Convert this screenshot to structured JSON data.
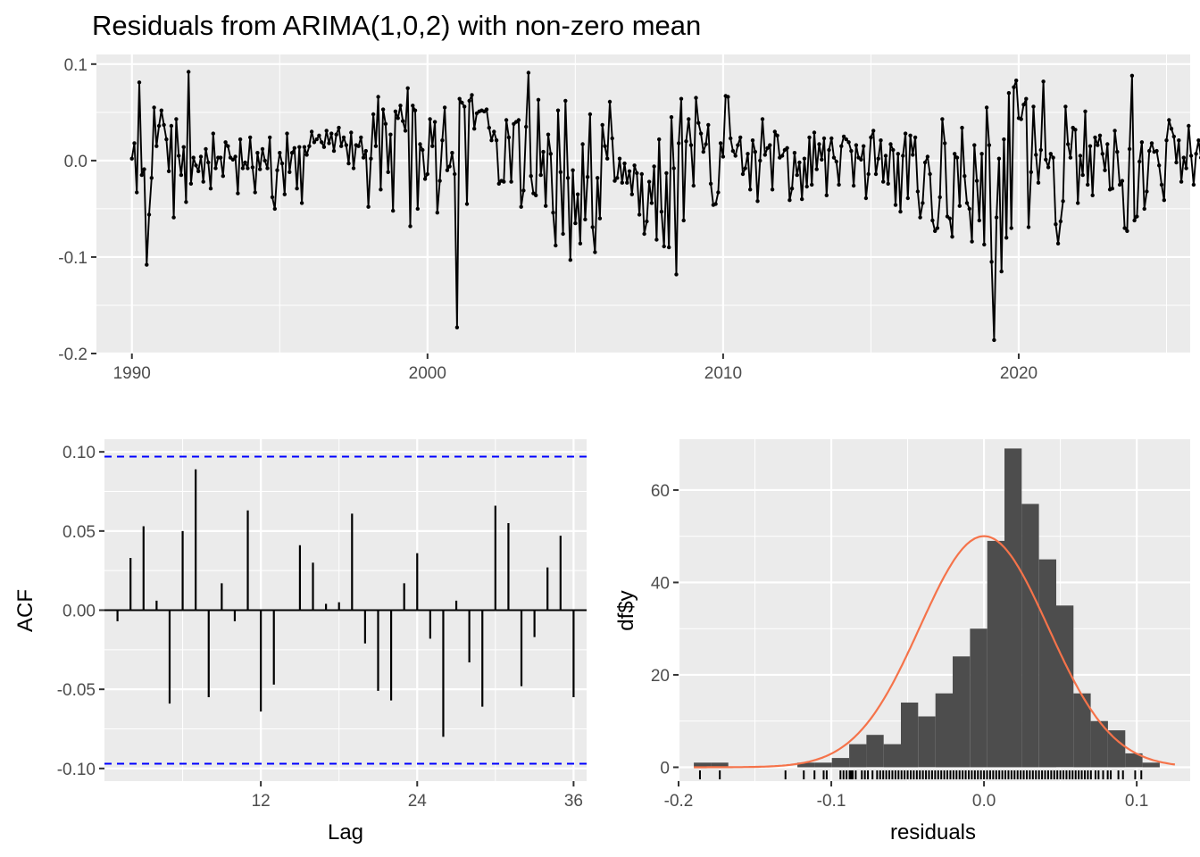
{
  "chart_data": [
    {
      "type": "line",
      "title": "Residuals from ARIMA(1,0,2) with non-zero mean",
      "xlabel": "",
      "ylabel": "",
      "xlim": [
        1988.8,
        2025.8
      ],
      "ylim": [
        -0.2,
        0.11
      ],
      "x_ticks": [
        "1990",
        "2000",
        "2010",
        "2020"
      ],
      "y_ticks": [
        "0.1",
        "0.0",
        "-0.1",
        "-0.2"
      ],
      "start_year": 1990,
      "frequency": 12,
      "values": [
        0.002,
        0.018,
        -0.033,
        0.081,
        -0.015,
        -0.009,
        -0.108,
        -0.056,
        -0.018,
        0.055,
        0.015,
        0.036,
        0.052,
        0.037,
        0.022,
        -0.011,
        0.036,
        -0.059,
        0.043,
        0.005,
        -0.015,
        0.014,
        -0.043,
        0.092,
        -0.024,
        0.003,
        -0.005,
        -0.011,
        0.004,
        -0.022,
        0.012,
        -0.002,
        -0.029,
        0.028,
        -0.008,
        0.003,
        0.003,
        -0.016,
        0.019,
        0.015,
        0.003,
        0.001,
        0.004,
        -0.034,
        0.022,
        -0.008,
        -0.002,
        -0.008,
        0.024,
        -0.007,
        -0.033,
        0.008,
        -0.009,
        0.012,
        0.0,
        -0.008,
        0.024,
        -0.038,
        -0.05,
        -0.01,
        0.008,
        -0.003,
        -0.035,
        0.028,
        -0.012,
        0.008,
        0.013,
        -0.029,
        0.014,
        -0.044,
        0.014,
        0.006,
        0.015,
        0.03,
        0.019,
        0.022,
        0.026,
        0.019,
        0.014,
        0.031,
        0.018,
        0.028,
        0.01,
        0.027,
        0.034,
        0.015,
        0.024,
        0.016,
        -0.003,
        0.029,
        -0.008,
        0.016,
        0.015,
        0.024,
        0.003,
        0.01,
        -0.048,
        0.002,
        0.048,
        0.015,
        0.066,
        -0.03,
        0.053,
        0.038,
        -0.012,
        0.027,
        -0.052,
        0.051,
        0.044,
        0.057,
        0.041,
        0.031,
        0.075,
        -0.068,
        0.057,
        0.052,
        -0.05,
        0.017,
        0.011,
        -0.019,
        -0.014,
        0.043,
        0.015,
        0.04,
        -0.054,
        -0.021,
        0.021,
        0.055,
        -0.01,
        -0.006,
        0.008,
        -0.014,
        -0.173,
        0.064,
        0.06,
        0.056,
        -0.045,
        0.062,
        0.068,
        0.033,
        0.049,
        0.051,
        0.052,
        0.051,
        0.053,
        0.034,
        0.021,
        0.03,
        0.021,
        -0.024,
        -0.021,
        -0.022,
        0.042,
        0.024,
        -0.022,
        0.038,
        0.04,
        0.042,
        -0.048,
        -0.031,
        0.035,
        0.091,
        -0.016,
        -0.034,
        -0.036,
        0.063,
        -0.015,
        0.009,
        -0.047,
        0.027,
        0.007,
        -0.054,
        -0.088,
        0.052,
        -0.012,
        -0.076,
        0.062,
        -0.018,
        -0.103,
        -0.01,
        -0.065,
        -0.035,
        -0.086,
        0.017,
        -0.061,
        -0.017,
        0.048,
        -0.069,
        -0.095,
        -0.018,
        -0.06,
        0.037,
        0.015,
        0.002,
        0.061,
        0.023,
        -0.021,
        -0.018,
        0.002,
        -0.023,
        -0.003,
        -0.023,
        -0.011,
        -0.035,
        -0.005,
        -0.013,
        -0.056,
        -0.014,
        -0.076,
        -0.063,
        -0.022,
        -0.044,
        -0.006,
        -0.082,
        0.022,
        -0.053,
        -0.089,
        -0.013,
        -0.09,
        0.045,
        -0.008,
        -0.118,
        0.018,
        0.064,
        -0.062,
        0.02,
        0.043,
        0.016,
        -0.026,
        0.065,
        0.039,
        0.028,
        0.009,
        0.017,
        0.037,
        -0.024,
        -0.046,
        -0.045,
        -0.033,
        0.018,
        0.004,
        0.067,
        0.066,
        0.023,
        0.01,
        0.005,
        0.016,
        0.024,
        -0.014,
        -0.008,
        0.007,
        -0.03,
        0.021,
        0.009,
        -0.042,
        0.0,
        0.043,
        0.006,
        0.013,
        0.016,
        -0.03,
        0.03,
        0.026,
        0.003,
        0.005,
        0.011,
        0.013,
        -0.041,
        -0.029,
        0.008,
        -0.015,
        -0.002,
        -0.04,
        0.002,
        -0.027,
        0.024,
        -0.025,
        0.029,
        -0.009,
        0.017,
        0.001,
        0.023,
        -0.036,
        0.011,
        0.023,
        0.003,
        -0.001,
        -0.025,
        0.015,
        0.025,
        0.022,
        0.019,
        0.01,
        -0.026,
        0.016,
        0.003,
        0.001,
        0.015,
        -0.039,
        -0.014,
        0.024,
        0.031,
        -0.014,
        0.002,
        0.021,
        -0.022,
        0.005,
        -0.024,
        0.017,
        0.011,
        -0.046,
        0.007,
        -0.053,
        0.005,
        0.028,
        -0.039,
        0.026,
        0.006,
        0.024,
        -0.032,
        -0.059,
        -0.044,
        -0.002,
        0.004,
        -0.014,
        -0.062,
        -0.073,
        -0.07,
        -0.038,
        0.043,
        0.018,
        -0.058,
        -0.06,
        -0.079,
        0.007,
        0.003,
        -0.047,
        0.034,
        -0.016,
        -0.044,
        -0.05,
        -0.084,
        0.016,
        -0.021,
        -0.062,
        0.007,
        -0.087,
        0.055,
        0.016,
        -0.105,
        -0.186,
        -0.059,
        0.002,
        -0.115,
        0.022,
        -0.08,
        0.07,
        -0.07,
        0.076,
        0.083,
        0.044,
        0.043,
        0.058,
        0.064,
        -0.069,
        -0.012,
        0.056,
        0.006,
        -0.023,
        0.011,
        0.082,
        0.001,
        -0.007,
        0.007,
        0.003,
        -0.066,
        -0.086,
        -0.063,
        -0.042,
        0.056,
        0.017,
        0.003,
        0.034,
        0.032,
        -0.044,
        0.005,
        -0.015,
        0.051,
        -0.025,
        0.015,
        -0.036,
        0.024,
        0.016,
        0.026,
        0.007,
        -0.01,
        0.017,
        -0.03,
        -0.029,
        0.031,
        0.009,
        -0.025,
        -0.021,
        -0.07,
        -0.073,
        0.012,
        0.088,
        -0.062,
        -0.058,
        -0.001,
        0.019,
        -0.05,
        -0.032,
        0.01,
        0.018,
        0.009,
        0.01,
        -0.005,
        -0.025,
        -0.041,
        0.021,
        0.042,
        0.033,
        0.025,
        -0.002,
        0.021,
        -0.022,
        0.003,
        -0.008,
        0.036,
        0.005,
        -0.025,
        0.007,
        0.021,
        0.003,
        0.018,
        0.009,
        -0.041,
        0.048,
        0.001,
        -0.009,
        0.03,
        0.023,
        -0.008,
        0.03,
        0.001,
        0.029,
        0.021,
        -0.01,
        0.028,
        -0.006,
        -0.032,
        0.001,
        -0.046,
        -0.038,
        -0.05,
        0.023,
        0.01,
        -0.036,
        -0.003,
        -0.026,
        0.006,
        -0.023,
        0.004,
        0.025,
        0.016,
        -0.01,
        -0.042,
        0.006,
        0.016,
        0.015,
        -0.028,
        -0.015,
        -0.004,
        0.003,
        -0.026,
        0.032,
        0.007,
        -0.033,
        0.004,
        -0.01,
        0.015,
        0.007,
        0.014,
        0.014,
        0.011,
        0.003,
        -0.017,
        0.015,
        -0.043,
        0.01,
        -0.023,
        0.017,
        -0.003,
        -0.034,
        -0.004,
        0.026,
        0.01,
        -0.009,
        0.073,
        -0.056,
        -0.037,
        0.004,
        -0.064,
        0.034,
        0.003,
        -0.009,
        -0.002,
        0.024,
        0.026,
        -0.009,
        0.002,
        0.01,
        0.001,
        -0.01,
        0.012,
        -0.005,
        0.009,
        0.001,
        0.019,
        0.005,
        0.009,
        0.012,
        0.016,
        0.006,
        0.018,
        0.026,
        0.013,
        0.009,
        -0.046,
        0.033,
        -0.028,
        0.005,
        0.029,
        0.014,
        -0.016,
        0.062,
        -0.057,
        -0.025,
        0.035,
        -0.035,
        0.005,
        0.018,
        -0.026,
        0.001,
        -0.041,
        0.006,
        0.03,
        0.019,
        0.023,
        -0.002,
        0.041,
        -0.066,
        0.025,
        0.014,
        0.028,
        -0.014,
        -0.04,
        0.032,
        0.028,
        -0.024,
        0.038,
        -0.043,
        -0.015,
        0.036,
        0.002,
        -0.035,
        -0.047,
        -0.006,
        -0.001,
        0.018,
        0.052,
        -0.056,
        -0.078,
        0.024,
        -0.016,
        -0.111,
        -0.037,
        0.02,
        0.048,
        0.015,
        0.01,
        0.004,
        -0.046,
        0.008,
        0.016,
        -0.043,
        0.022,
        0.018,
        0.035,
        -0.054,
        -0.005,
        0.01,
        0.025,
        0.018,
        0.034,
        0.029,
        0.002,
        0.015,
        -0.103,
        -0.13,
        0.103,
        0.045,
        0.002,
        0.09,
        -0.041,
        0.045,
        0.018,
        0.043,
        0.015,
        0.099,
        -0.026,
        0.035,
        -0.004,
        -0.003,
        -0.024,
        0.082,
        0.028,
        -0.003,
        0.009,
        0.01,
        0.027,
        -0.002,
        0.011,
        -0.018,
        -0.052,
        0.034,
        0.005,
        -0.073,
        0.016,
        0.026,
        -0.001,
        0.038,
        -0.024,
        -0.028,
        -0.058,
        -0.03,
        0.008,
        0.075,
        0.039,
        -0.045,
        -0.06,
        -0.04,
        0.001,
        0.061,
        -0.029,
        0.016,
        0.054,
        -0.037,
        0.014,
        -0.015,
        -0.09,
        0.045,
        -0.025,
        0.01,
        -0.047,
        -0.092,
        0.011,
        -0.004,
        -0.007,
        0.046,
        0.035,
        -0.094,
        -0.032,
        -0.047
      ],
      "color_line": "#000000",
      "panel_bg": "#ebebeb",
      "grid_color": "#ffffff",
      "grid": true
    },
    {
      "type": "bar",
      "title": "",
      "xlabel": "Lag",
      "ylabel": "ACF",
      "xlim": [
        0,
        37
      ],
      "ylim": [
        -0.108,
        0.108
      ],
      "x_ticks": [
        "12",
        "24",
        "36"
      ],
      "y_ticks": [
        "0.10",
        "0.05",
        "0.00",
        "-0.05",
        "-0.10"
      ],
      "categories": [
        1,
        2,
        3,
        4,
        5,
        6,
        7,
        8,
        9,
        10,
        11,
        12,
        13,
        14,
        15,
        16,
        17,
        18,
        19,
        20,
        21,
        22,
        23,
        24,
        25,
        26,
        27,
        28,
        29,
        30,
        31,
        32,
        33,
        34,
        35,
        36
      ],
      "values": [
        -0.007,
        0.033,
        0.053,
        0.006,
        -0.059,
        0.05,
        0.089,
        -0.055,
        0.017,
        -0.007,
        0.063,
        -0.064,
        -0.047,
        0.0,
        0.041,
        0.03,
        0.004,
        0.005,
        0.061,
        -0.021,
        -0.051,
        -0.057,
        0.017,
        0.036,
        -0.018,
        -0.08,
        0.006,
        -0.033,
        -0.061,
        0.066,
        0.055,
        -0.048,
        -0.017,
        0.027,
        0.047,
        -0.055
      ],
      "confidence_limit": 0.097,
      "color_ci": "#0000ff",
      "panel_bg": "#ebebeb",
      "grid_color": "#ffffff",
      "grid": true
    },
    {
      "type": "bar",
      "title": "",
      "xlabel": "residuals",
      "ylabel": "df$y",
      "xlim": [
        -0.2,
        0.135
      ],
      "ylim": [
        -3,
        71
      ],
      "x_ticks": [
        "-0.2",
        "-0.1",
        "0.0",
        "0.1"
      ],
      "y_ticks": [
        "60",
        "40",
        "20",
        "0"
      ],
      "bin_start": -0.19,
      "bin_width": 0.0113,
      "values": [
        1,
        1,
        0,
        0,
        0,
        0,
        1,
        1,
        2,
        5,
        7,
        5,
        14,
        11,
        16,
        24,
        30,
        49,
        69,
        57,
        45,
        35,
        16,
        10,
        8,
        3,
        1
      ],
      "density_curve": {
        "mean": 0.0,
        "sd": 0.042,
        "n": 466
      },
      "rug": [
        -0.186,
        -0.173,
        -0.13,
        -0.118,
        -0.111,
        -0.105,
        -0.103,
        -0.094,
        -0.092,
        -0.09,
        -0.088,
        -0.087,
        -0.086,
        -0.084,
        -0.08,
        -0.078,
        -0.076,
        -0.073,
        -0.07,
        -0.068,
        -0.066,
        -0.064,
        -0.062,
        -0.06,
        -0.058,
        -0.056,
        -0.054,
        -0.052,
        -0.05,
        -0.048,
        -0.046,
        -0.044,
        -0.042,
        -0.04,
        -0.038,
        -0.036,
        -0.034,
        -0.032,
        -0.03,
        -0.028,
        -0.026,
        -0.024,
        -0.022,
        -0.02,
        -0.018,
        -0.016,
        -0.014,
        -0.012,
        -0.01,
        -0.008,
        -0.006,
        -0.004,
        -0.002,
        0.0,
        0.002,
        0.004,
        0.006,
        0.008,
        0.01,
        0.012,
        0.014,
        0.016,
        0.018,
        0.02,
        0.022,
        0.024,
        0.026,
        0.028,
        0.03,
        0.032,
        0.034,
        0.036,
        0.038,
        0.04,
        0.042,
        0.044,
        0.046,
        0.048,
        0.05,
        0.052,
        0.054,
        0.056,
        0.058,
        0.06,
        0.062,
        0.064,
        0.066,
        0.068,
        0.07,
        0.073,
        0.075,
        0.078,
        0.081,
        0.083,
        0.088,
        0.091,
        0.099,
        0.103
      ],
      "color_bars": "#4d4d4d",
      "color_curve": "#f5734a",
      "panel_bg": "#ebebeb",
      "grid_color": "#ffffff",
      "grid": true
    }
  ]
}
